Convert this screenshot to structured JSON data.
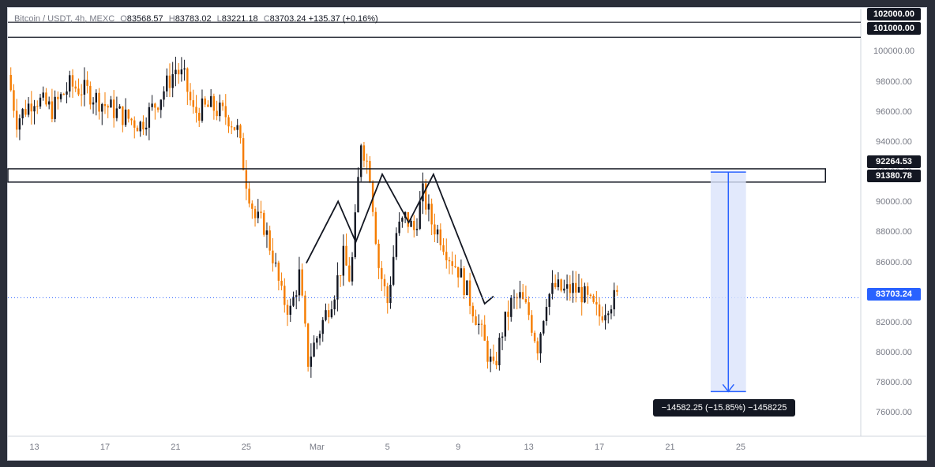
{
  "header": {
    "symbol": "Bitcoin / USDT, 4h, MEXC",
    "open_label": "O",
    "open": "83568.57",
    "high_label": "H",
    "high": "83783.02",
    "low_label": "L",
    "low": "83221.18",
    "close_label": "C",
    "close": "83703.24",
    "change": "+135.37 (+0.16%)"
  },
  "price_tags": {
    "upper_top": "102000.00",
    "upper_bottom": "101000.00",
    "zone_top": "92264.53",
    "zone_bottom": "91380.78",
    "last": "83703.24"
  },
  "measure": {
    "label": "−14582.25 (−15.85%) −1458225"
  },
  "colors": {
    "bull": "#131722",
    "bear": "#f57c00",
    "zone": "#131722",
    "measure_fill": "#dbe4fb",
    "measure_line": "#2962ff",
    "background": "#ffffff"
  },
  "chart_data": {
    "type": "line",
    "ylim": [
      74500,
      102900
    ],
    "y_ticks": [
      "76000.00",
      "78000.00",
      "80000.00",
      "82000.00",
      "84000.00",
      "86000.00",
      "88000.00",
      "90000.00",
      "92000.00",
      "94000.00",
      "96000.00",
      "98000.00",
      "100000.00"
    ],
    "x_ticks": [
      "13",
      "17",
      "21",
      "25",
      "Mar",
      "5",
      "9",
      "13",
      "17",
      "21",
      "25"
    ],
    "x_tick_days": [
      -16,
      -12,
      -8,
      -4,
      0,
      4,
      8,
      12,
      16,
      20,
      24
    ],
    "x_range_days": [
      -17.5,
      30.8
    ],
    "series": [
      {
        "x_days": [
          -17.5,
          -17,
          -16,
          -15,
          -14,
          -13,
          -12,
          -11,
          -10,
          -9,
          -8,
          -7.5,
          -7,
          -6,
          -5,
          -4.5,
          -4,
          -3.5,
          -3,
          -2.5,
          -2,
          -1.5,
          -1,
          -0.5,
          1,
          1.5,
          1.9,
          2.1,
          2.5,
          3,
          3.5,
          4,
          4.5,
          5,
          5.5,
          6,
          6.5,
          7,
          7.5,
          8,
          8.5,
          9,
          9.5,
          10,
          10.5,
          11,
          11.5,
          12,
          12.5,
          13,
          13.5,
          14,
          14.5,
          15,
          15.5,
          16,
          16.5,
          17
        ],
        "close": [
          98500,
          95500,
          97000,
          96200,
          97800,
          97400,
          96500,
          95800,
          95200,
          96800,
          98900,
          98200,
          96000,
          96400,
          95700,
          94800,
          91500,
          89000,
          88500,
          86500,
          83800,
          82800,
          85200,
          79500,
          84200,
          86400,
          84800,
          87600,
          94200,
          92000,
          85800,
          83400,
          88000,
          89000,
          88200,
          90600,
          88700,
          87800,
          86500,
          85600,
          84100,
          82500,
          80600,
          78800,
          81500,
          83300,
          83700,
          82600,
          80500,
          83700,
          84400,
          84100,
          84300,
          84000,
          83200,
          82500,
          83400,
          83703
        ]
      }
    ],
    "resistance_zone": [
      91380.78,
      92264.53
    ],
    "upper_levels": [
      102000,
      101000
    ],
    "last_price": 83703.24,
    "pattern_path": {
      "x_days": [
        -0.6,
        1.2,
        2.2,
        3.7,
        5.2,
        6.6,
        9.5,
        10
      ],
      "y": [
        86000,
        90100,
        87400,
        91900,
        88700,
        91900,
        83300,
        83800
      ]
    },
    "measure_range": {
      "x_days": [
        22.3,
        24.3
      ],
      "from": 92050,
      "to": 77470,
      "change": -14582.25,
      "percent": -15.85
    }
  }
}
